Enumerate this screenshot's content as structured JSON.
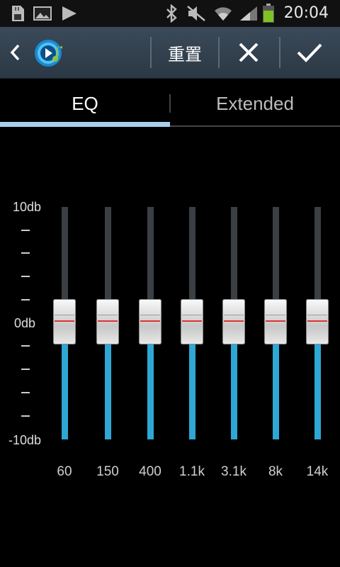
{
  "status_bar": {
    "time": "20:04",
    "icons": [
      "sd-card-icon",
      "gallery-icon",
      "play-notification-icon",
      "bluetooth-icon",
      "mute-icon",
      "wifi-icon",
      "signal-icon",
      "battery-icon"
    ]
  },
  "action_bar": {
    "back_icon": "chevron-left-icon",
    "app_icon": "music-player-icon",
    "reset_label": "重置",
    "cancel_icon": "close-icon",
    "confirm_icon": "check-icon",
    "bg_color": "#34424f"
  },
  "tabs": [
    {
      "label": "EQ",
      "selected": true
    },
    {
      "label": "Extended",
      "selected": false
    }
  ],
  "scale": {
    "top_label": "10db",
    "mid_label": "0db",
    "bottom_label": "-10db"
  },
  "bands": [
    {
      "label": "60",
      "gain_db": 0
    },
    {
      "label": "150",
      "gain_db": 0
    },
    {
      "label": "400",
      "gain_db": 0
    },
    {
      "label": "1.1k",
      "gain_db": 0
    },
    {
      "label": "3.1k",
      "gain_db": 0
    },
    {
      "label": "8k",
      "gain_db": 0
    },
    {
      "label": "14k",
      "gain_db": 0
    }
  ],
  "colors": {
    "accent": "#2ea7d4",
    "tab_indicator": "#a9d1ec",
    "knob_mark": "#dd3333"
  }
}
